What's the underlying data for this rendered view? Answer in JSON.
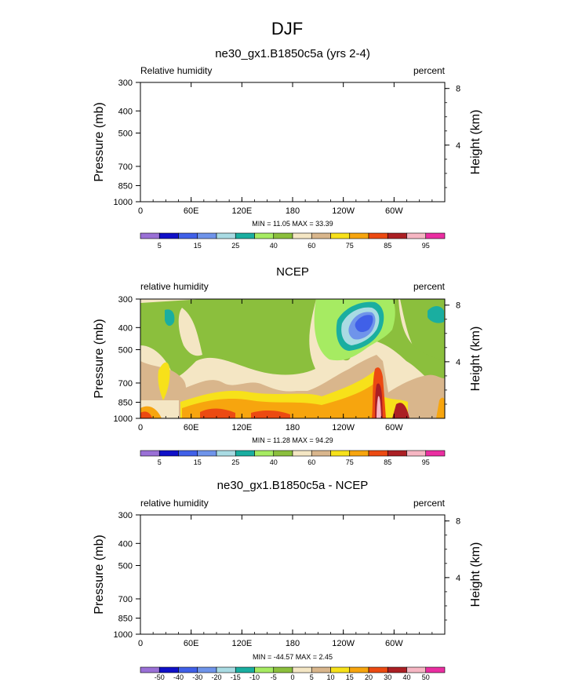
{
  "figure": {
    "title": "DJF"
  },
  "colors": {
    "abs_palette": [
      "#9a70d6",
      "#1010c8",
      "#4060e8",
      "#6f94ea",
      "#a9dbe3",
      "#1aaea0",
      "#a6eb62",
      "#8bbf3d",
      "#f4e6c4",
      "#d9b68c",
      "#f7e11a",
      "#f7a50e",
      "#ec4a12",
      "#ab1f24",
      "#f6b6c3",
      "#ea2ea1"
    ],
    "diff_palette": [
      "#9a70d6",
      "#1010c8",
      "#4060e8",
      "#6f94ea",
      "#a9dbe3",
      "#1aaea0",
      "#a6eb62",
      "#8bbf3d",
      "#f4e6c4",
      "#d9b68c",
      "#f7e11a",
      "#f7a50e",
      "#ec4a12",
      "#ab1f24",
      "#f6b6c3",
      "#ea2ea1"
    ]
  },
  "chart_data": [
    {
      "type": "heatmap",
      "title": "ne30_gx1.B1850c5a (yrs 2-4)",
      "left_label": "Relative humidity",
      "right_label": "percent",
      "xlabel": "",
      "ylabel": "Pressure (mb)",
      "y2label": "Height (km)",
      "x_ticks": [
        "0",
        "60E",
        "120E",
        "180",
        "120W",
        "60W"
      ],
      "y_ticks": [
        "300",
        "400",
        "500",
        "700",
        "850",
        "1000"
      ],
      "y2_ticks": [
        "8",
        "4"
      ],
      "stats": "MIN = 11.05  MAX = 33.39",
      "colorbar_labels": [
        "5",
        "15",
        "25",
        "40",
        "60",
        "75",
        "85",
        "95"
      ],
      "filled": false
    },
    {
      "type": "heatmap",
      "title": "NCEP",
      "left_label": "relative humidity",
      "right_label": "percent",
      "xlabel": "",
      "ylabel": "Pressure (mb)",
      "y2label": "Height (km)",
      "x_ticks": [
        "0",
        "60E",
        "120E",
        "180",
        "120W",
        "60W"
      ],
      "y_ticks": [
        "300",
        "400",
        "500",
        "700",
        "850",
        "1000"
      ],
      "y2_ticks": [
        "8",
        "4"
      ],
      "stats": "MIN = 11.28  MAX = 94.29",
      "colorbar_labels": [
        "5",
        "15",
        "25",
        "40",
        "60",
        "75",
        "85",
        "95"
      ],
      "filled": true
    },
    {
      "type": "heatmap",
      "title": "ne30_gx1.B1850c5a - NCEP",
      "left_label": "relative humidity",
      "right_label": "percent",
      "xlabel": "",
      "ylabel": "Pressure (mb)",
      "y2label": "Height (km)",
      "x_ticks": [
        "0",
        "60E",
        "120E",
        "180",
        "120W",
        "60W"
      ],
      "y_ticks": [
        "300",
        "400",
        "500",
        "700",
        "850",
        "1000"
      ],
      "y2_ticks": [
        "8",
        "4"
      ],
      "stats": "MIN = -44.57  MAX =   2.45",
      "colorbar_labels": [
        "-50",
        "-40",
        "-30",
        "-20",
        "-15",
        "-10",
        "-5",
        "0",
        "5",
        "10",
        "15",
        "20",
        "30",
        "40",
        "50"
      ],
      "filled": false
    }
  ]
}
